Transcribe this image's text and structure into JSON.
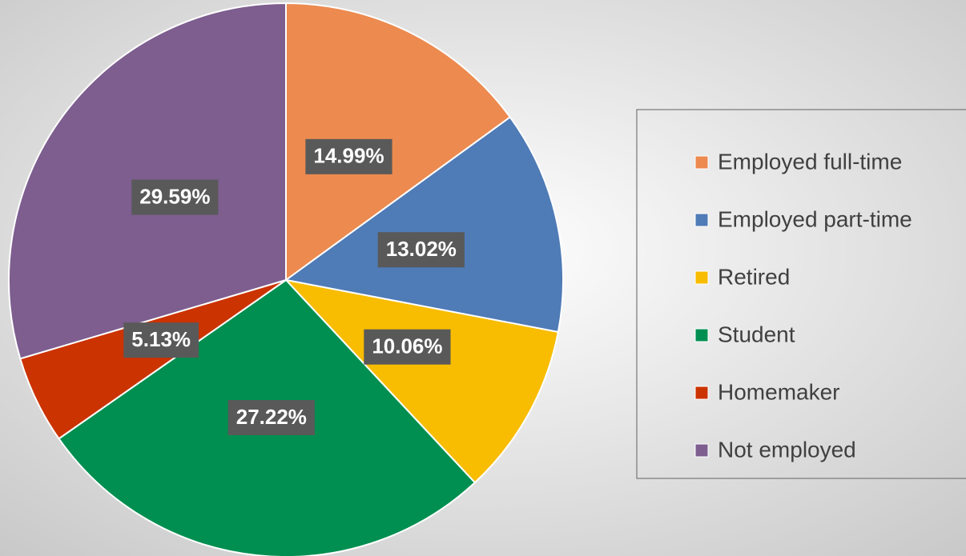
{
  "chart_data": {
    "type": "pie",
    "categories": [
      "Employed full-time",
      "Employed part-time",
      "Retired",
      "Student",
      "Homemaker",
      "Not employed"
    ],
    "values": [
      14.99,
      13.02,
      10.06,
      27.22,
      5.13,
      29.59
    ],
    "value_labels": [
      "14.99%",
      "13.02%",
      "10.06%",
      "27.22%",
      "5.13%",
      "29.59%"
    ],
    "colors": [
      "#EC8A4F",
      "#4F7BB6",
      "#F8BC00",
      "#008F50",
      "#CB3300",
      "#7D5E8F"
    ],
    "legend": "right"
  }
}
